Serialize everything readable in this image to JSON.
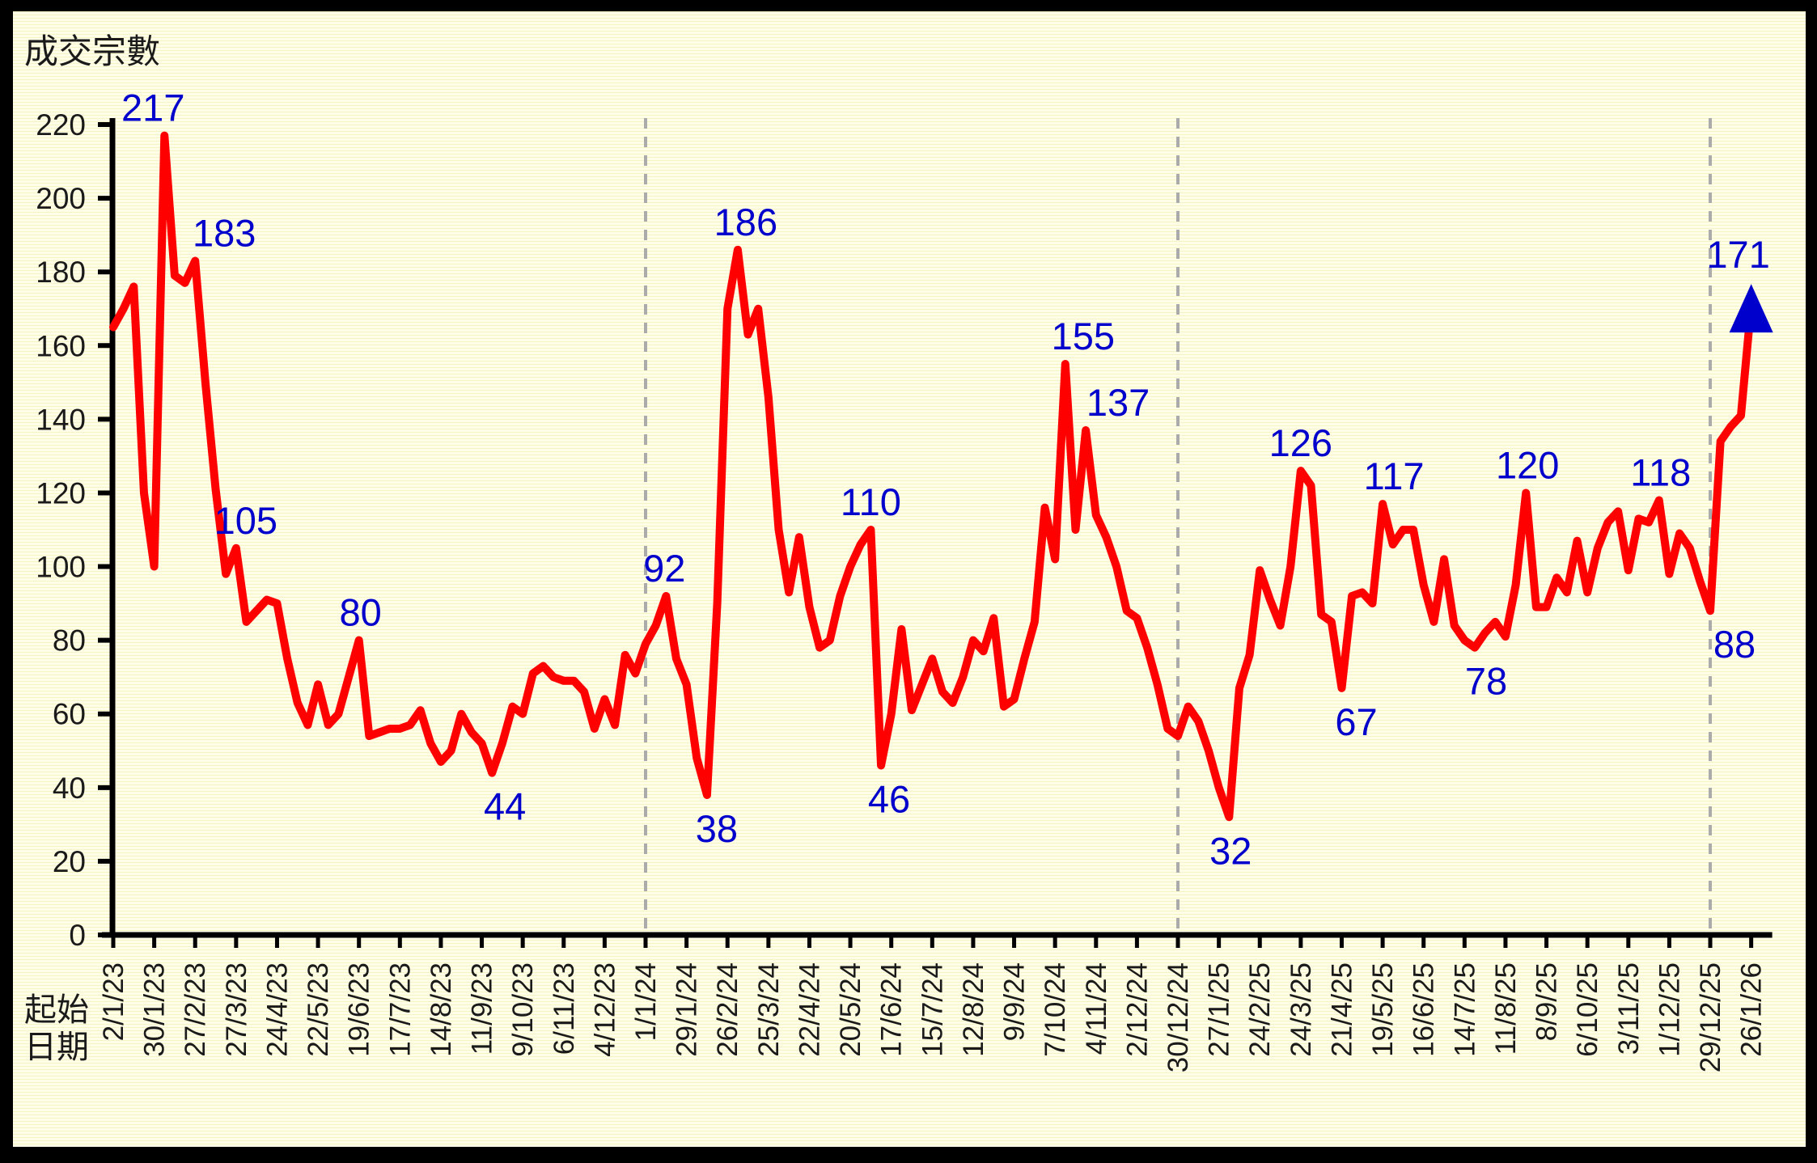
{
  "title": "成交宗數",
  "x_axis_title_lines": [
    "起始",
    "日期"
  ],
  "colors": {
    "background": "#FFFEE6",
    "stripe": "#E4D682",
    "frame": "#000000",
    "line": "#FF0000",
    "point_label": "#0000CC",
    "axis": "#000000",
    "tick_label": "#1A1A1A",
    "year_gridline": "#ABABAB",
    "end_arrow": "#0000CC"
  },
  "chart_data": {
    "type": "line",
    "title": "成交宗數",
    "xlabel": "起始日期",
    "ylabel": "成交宗數",
    "ylim": [
      0,
      220
    ],
    "y_ticks": [
      0,
      20,
      40,
      60,
      80,
      100,
      120,
      140,
      160,
      180,
      200,
      220
    ],
    "grid": "vertical dashed lines at each year boundary only",
    "legend": "none",
    "x_tick_interval_weeks": 4,
    "x_tick_labels": [
      "2/1/23",
      "30/1/23",
      "27/2/23",
      "27/3/23",
      "24/4/23",
      "22/5/23",
      "19/6/23",
      "17/7/23",
      "14/8/23",
      "11/9/23",
      "9/10/23",
      "6/11/23",
      "4/12/23",
      "1/1/24",
      "29/1/24",
      "26/2/24",
      "25/3/24",
      "22/4/24",
      "20/5/24",
      "17/6/24",
      "15/7/24",
      "12/8/24",
      "9/9/24",
      "7/10/24",
      "4/11/24",
      "2/12/24",
      "30/12/24",
      "27/1/25",
      "24/2/25",
      "24/3/25",
      "21/4/25",
      "19/5/25",
      "16/6/25",
      "14/7/25",
      "11/8/25",
      "8/9/25",
      "6/10/25",
      "3/11/25",
      "1/12/25",
      "29/12/25",
      "26/1/26"
    ],
    "year_gridline_weeks": [
      52,
      104,
      156
    ],
    "series": [
      {
        "name": "成交宗數",
        "start_week_label": "2/1/23",
        "values": [
          165,
          170,
          176,
          120,
          100,
          217,
          179,
          177,
          183,
          150,
          121,
          98,
          105,
          85,
          88,
          91,
          90,
          75,
          63,
          57,
          68,
          57,
          60,
          70,
          80,
          54,
          55,
          56,
          56,
          57,
          61,
          52,
          47,
          50,
          60,
          55,
          52,
          44,
          52,
          62,
          60,
          71,
          73,
          70,
          69,
          69,
          66,
          56,
          64,
          57,
          76,
          71,
          79,
          84,
          92,
          75,
          68,
          48,
          38,
          90,
          170,
          186,
          163,
          170,
          146,
          110,
          93,
          108,
          89,
          78,
          80,
          92,
          100,
          106,
          110,
          46,
          60,
          83,
          61,
          68,
          75,
          66,
          63,
          70,
          80,
          77,
          86,
          62,
          64,
          75,
          85,
          116,
          102,
          155,
          110,
          137,
          114,
          108,
          100,
          88,
          86,
          78,
          68,
          56,
          54,
          62,
          58,
          50,
          40,
          32,
          67,
          76,
          99,
          91,
          84,
          100,
          126,
          122,
          87,
          85,
          67,
          92,
          93,
          90,
          117,
          106,
          110,
          110,
          95,
          85,
          102,
          84,
          80,
          78,
          82,
          85,
          81,
          95,
          120,
          89,
          89,
          97,
          93,
          107,
          93,
          105,
          112,
          115,
          99,
          113,
          112,
          118,
          98,
          109,
          105,
          96,
          88,
          134,
          138,
          141,
          171
        ]
      }
    ],
    "point_labels": [
      {
        "text": "217",
        "week": 5,
        "value": 217,
        "dx": -14,
        "side": "above"
      },
      {
        "text": "183",
        "week": 8,
        "value": 183,
        "dx": 36,
        "side": "above"
      },
      {
        "text": "105",
        "week": 12,
        "value": 105,
        "dx": 12,
        "side": "above"
      },
      {
        "text": "80",
        "week": 24,
        "value": 80,
        "dx": 2,
        "side": "above"
      },
      {
        "text": "44",
        "week": 37,
        "value": 44,
        "dx": 16,
        "side": "below"
      },
      {
        "text": "92",
        "week": 54,
        "value": 92,
        "dx": -2,
        "side": "above"
      },
      {
        "text": "38",
        "week": 58,
        "value": 38,
        "dx": 12,
        "side": "below"
      },
      {
        "text": "186",
        "week": 61,
        "value": 186,
        "dx": 10,
        "side": "above"
      },
      {
        "text": "110",
        "week": 74,
        "value": 110,
        "dx": 0,
        "side": "above"
      },
      {
        "text": "46",
        "week": 75,
        "value": 46,
        "dx": 10,
        "side": "below"
      },
      {
        "text": "155",
        "week": 93,
        "value": 155,
        "dx": 22,
        "side": "above"
      },
      {
        "text": "137",
        "week": 95,
        "value": 137,
        "dx": 40,
        "side": "above"
      },
      {
        "text": "32",
        "week": 109,
        "value": 32,
        "dx": 2,
        "side": "below"
      },
      {
        "text": "126",
        "week": 116,
        "value": 126,
        "dx": 0,
        "side": "above"
      },
      {
        "text": "67",
        "week": 120,
        "value": 67,
        "dx": 18,
        "side": "below"
      },
      {
        "text": "117",
        "week": 124,
        "value": 117,
        "dx": 14,
        "side": "above"
      },
      {
        "text": "78",
        "week": 133,
        "value": 78,
        "dx": 14,
        "side": "below"
      },
      {
        "text": "120",
        "week": 138,
        "value": 120,
        "dx": 2,
        "side": "above"
      },
      {
        "text": "118",
        "week": 151,
        "value": 118,
        "dx": 2,
        "side": "above"
      },
      {
        "text": "88",
        "week": 156,
        "value": 88,
        "dx": 30,
        "side": "below"
      },
      {
        "text": "171",
        "week": 160,
        "value": 171,
        "dx": -16,
        "side": "above_arrow"
      }
    ],
    "end_marker": {
      "shape": "up-arrow",
      "week": 160,
      "color": "#0000CC"
    }
  }
}
